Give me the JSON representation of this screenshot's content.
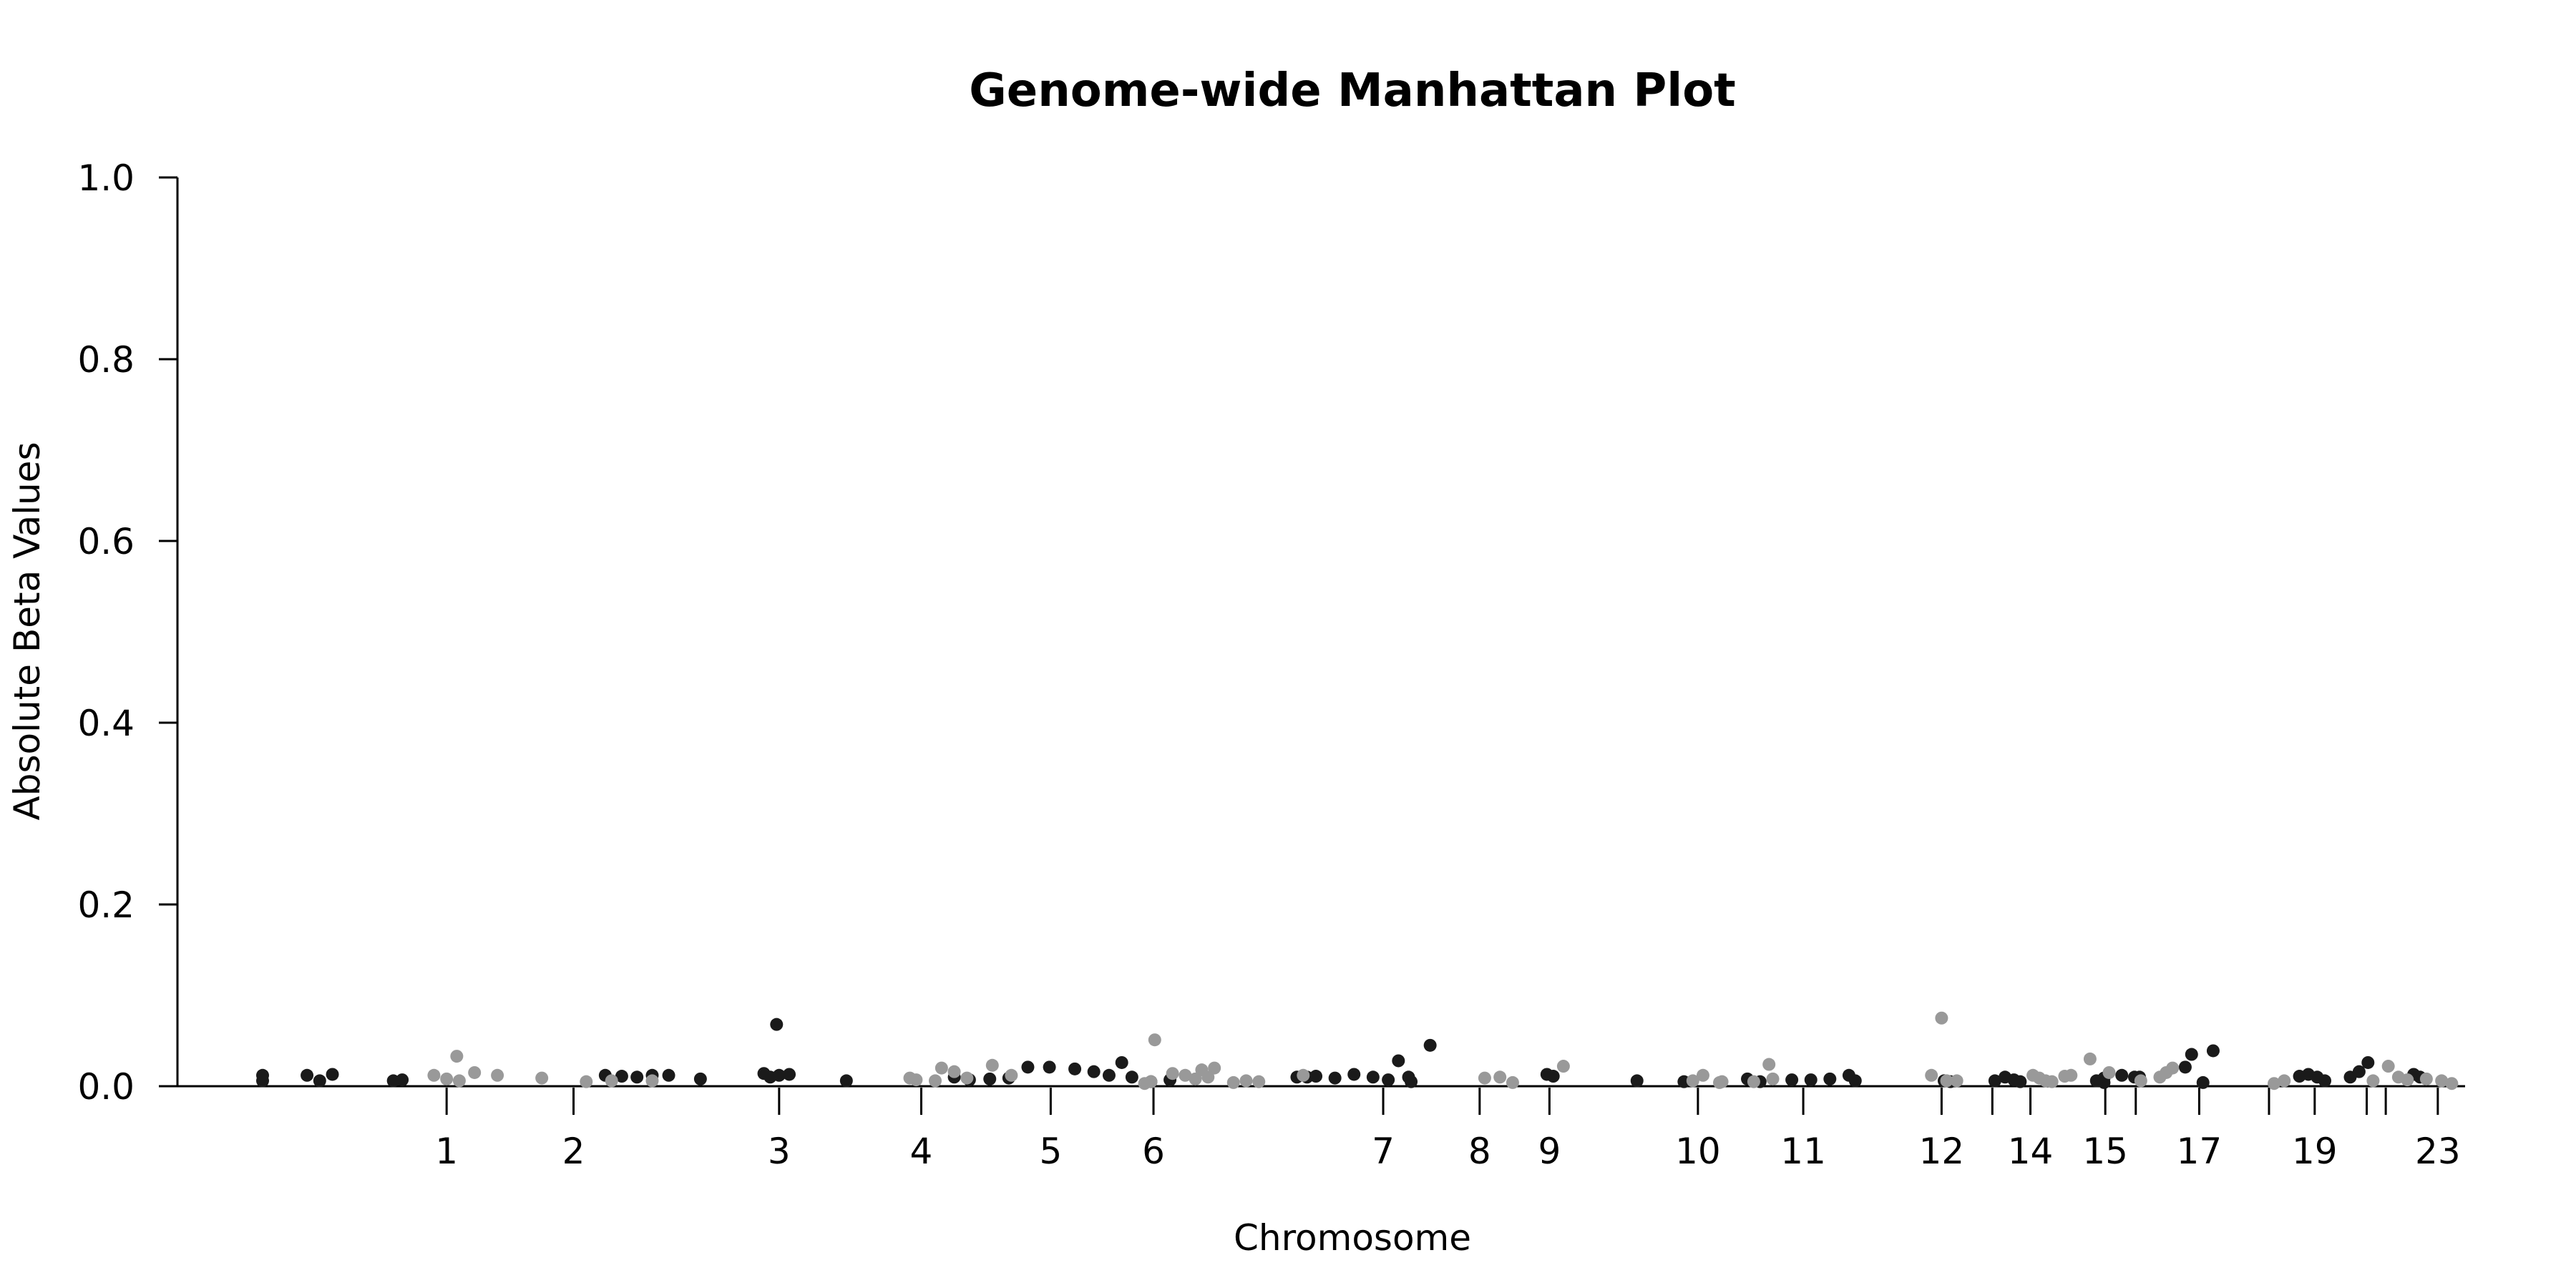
{
  "chart_data": {
    "type": "scatter",
    "title": "Genome-wide Manhattan Plot",
    "xlabel": "Chromosome",
    "ylabel": "Absolute Beta Values",
    "ylim": [
      0,
      1.0
    ],
    "y_ticks": [
      0.0,
      0.2,
      0.4,
      0.6,
      0.8,
      1.0
    ],
    "y_tick_labels": [
      "0.0",
      "0.2",
      "0.4",
      "0.6",
      "0.8",
      "1.0"
    ],
    "grid": false,
    "legend": "none",
    "colors": {
      "odd": "#1a1a1a",
      "even": "#999999"
    },
    "chromosome_ticks": [
      {
        "label": "1",
        "pos": 1.0
      },
      {
        "label": "2",
        "pos": 2.0
      },
      {
        "label": "3",
        "pos": 3.62
      },
      {
        "label": "4",
        "pos": 4.74
      },
      {
        "label": "5",
        "pos": 5.76
      },
      {
        "label": "6",
        "pos": 6.57
      },
      {
        "label": "7",
        "pos": 8.38
      },
      {
        "label": "8",
        "pos": 9.14
      },
      {
        "label": "9",
        "pos": 9.69
      },
      {
        "label": "10",
        "pos": 10.86
      },
      {
        "label": "11",
        "pos": 11.69
      },
      {
        "label": "12",
        "pos": 12.78
      },
      {
        "label": "",
        "pos": 13.18
      },
      {
        "label": "14",
        "pos": 13.48
      },
      {
        "label": "15",
        "pos": 14.07
      },
      {
        "label": "",
        "pos": 14.31
      },
      {
        "label": "17",
        "pos": 14.81
      },
      {
        "label": "",
        "pos": 15.36
      },
      {
        "label": "19",
        "pos": 15.72
      },
      {
        "label": "",
        "pos": 16.13
      },
      {
        "label": "",
        "pos": 16.28
      },
      {
        "label": "23",
        "pos": 16.69
      }
    ],
    "x_range": [
      -0.45,
      16.86
    ],
    "series": [
      {
        "color_key": "odd",
        "points": [
          [
            -0.45,
            0.012
          ],
          [
            -0.45,
            0.006
          ],
          [
            -0.1,
            0.012
          ],
          [
            0.1,
            0.013
          ],
          [
            0.58,
            0.006
          ],
          [
            0.65,
            0.007
          ],
          [
            0.0,
            0.006
          ],
          [
            3.6,
            0.068
          ],
          [
            2.25,
            0.012
          ],
          [
            2.38,
            0.011
          ],
          [
            2.5,
            0.01
          ],
          [
            2.62,
            0.012
          ],
          [
            2.75,
            0.012
          ],
          [
            3.0,
            0.008
          ],
          [
            3.5,
            0.014
          ],
          [
            3.55,
            0.01
          ],
          [
            3.62,
            0.012
          ],
          [
            3.7,
            0.013
          ],
          [
            4.15,
            0.006
          ],
          [
            5.0,
            0.01
          ],
          [
            5.12,
            0.007
          ],
          [
            5.28,
            0.008
          ],
          [
            5.43,
            0.009
          ],
          [
            5.58,
            0.021
          ],
          [
            5.75,
            0.021
          ],
          [
            5.95,
            0.019
          ],
          [
            6.1,
            0.016
          ],
          [
            6.22,
            0.012
          ],
          [
            6.32,
            0.026
          ],
          [
            6.4,
            0.01
          ],
          [
            6.55,
            0.005
          ],
          [
            6.7,
            0.007
          ],
          [
            7.7,
            0.01
          ],
          [
            7.78,
            0.01
          ],
          [
            7.85,
            0.011
          ],
          [
            8.0,
            0.009
          ],
          [
            8.15,
            0.013
          ],
          [
            8.3,
            0.01
          ],
          [
            8.42,
            0.007
          ],
          [
            8.5,
            0.028
          ],
          [
            8.58,
            0.01
          ],
          [
            8.75,
            0.045
          ],
          [
            8.6,
            0.005
          ],
          [
            9.67,
            0.013
          ],
          [
            9.72,
            0.011
          ],
          [
            10.38,
            0.006
          ],
          [
            10.75,
            0.005
          ],
          [
            11.25,
            0.008
          ],
          [
            11.35,
            0.005
          ],
          [
            11.6,
            0.007
          ],
          [
            11.75,
            0.007
          ],
          [
            11.9,
            0.008
          ],
          [
            12.05,
            0.012
          ],
          [
            12.1,
            0.006
          ],
          [
            13.4,
            0.005
          ],
          [
            12.85,
            0.005
          ],
          [
            12.8,
            0.006
          ],
          [
            13.2,
            0.006
          ],
          [
            13.28,
            0.01
          ],
          [
            13.35,
            0.007
          ],
          [
            14.06,
            0.004
          ],
          [
            14.2,
            0.012
          ],
          [
            14.34,
            0.01
          ],
          [
            14.3,
            0.01
          ],
          [
            14.06,
            0.009
          ],
          [
            14.0,
            0.006
          ],
          [
            14.7,
            0.021
          ],
          [
            14.75,
            0.035
          ],
          [
            14.84,
            0.004
          ],
          [
            14.92,
            0.039
          ],
          [
            15.6,
            0.011
          ],
          [
            15.67,
            0.013
          ],
          [
            15.74,
            0.01
          ],
          [
            15.8,
            0.006
          ],
          [
            16.0,
            0.01
          ],
          [
            16.07,
            0.016
          ],
          [
            16.14,
            0.026
          ],
          [
            16.5,
            0.013
          ],
          [
            16.55,
            0.01
          ]
        ]
      },
      {
        "color_key": "even",
        "points": [
          [
            0.9,
            0.012
          ],
          [
            1.0,
            0.008
          ],
          [
            1.08,
            0.033
          ],
          [
            1.1,
            0.006
          ],
          [
            1.22,
            0.015
          ],
          [
            1.4,
            0.012
          ],
          [
            1.75,
            0.009
          ],
          [
            2.1,
            0.005
          ],
          [
            2.3,
            0.006
          ],
          [
            2.62,
            0.006
          ],
          [
            4.65,
            0.009
          ],
          [
            4.85,
            0.006
          ],
          [
            4.9,
            0.02
          ],
          [
            5.0,
            0.016
          ],
          [
            5.1,
            0.009
          ],
          [
            5.3,
            0.023
          ],
          [
            5.45,
            0.012
          ],
          [
            4.7,
            0.007
          ],
          [
            6.58,
            0.051
          ],
          [
            6.55,
            0.005
          ],
          [
            6.5,
            0.003
          ],
          [
            6.72,
            0.014
          ],
          [
            6.82,
            0.012
          ],
          [
            6.9,
            0.008
          ],
          [
            6.95,
            0.018
          ],
          [
            7.05,
            0.02
          ],
          [
            7.0,
            0.01
          ],
          [
            7.2,
            0.004
          ],
          [
            7.3,
            0.006
          ],
          [
            7.4,
            0.005
          ],
          [
            7.75,
            0.012
          ],
          [
            9.18,
            0.009
          ],
          [
            9.3,
            0.01
          ],
          [
            9.4,
            0.004
          ],
          [
            9.8,
            0.022
          ],
          [
            10.9,
            0.012
          ],
          [
            10.82,
            0.006
          ],
          [
            11.03,
            0.004
          ],
          [
            11.05,
            0.005
          ],
          [
            11.3,
            0.005
          ],
          [
            11.42,
            0.024
          ],
          [
            11.45,
            0.008
          ],
          [
            12.7,
            0.012
          ],
          [
            12.78,
            0.075
          ],
          [
            12.82,
            0.006
          ],
          [
            12.9,
            0.006
          ],
          [
            13.5,
            0.012
          ],
          [
            13.55,
            0.009
          ],
          [
            13.6,
            0.006
          ],
          [
            13.65,
            0.005
          ],
          [
            13.75,
            0.011
          ],
          [
            13.8,
            0.012
          ],
          [
            13.95,
            0.03
          ],
          [
            14.1,
            0.015
          ],
          [
            14.35,
            0.006
          ],
          [
            14.5,
            0.01
          ],
          [
            14.55,
            0.015
          ],
          [
            14.6,
            0.02
          ],
          [
            15.4,
            0.003
          ],
          [
            15.48,
            0.006
          ],
          [
            16.18,
            0.006
          ],
          [
            16.3,
            0.022
          ],
          [
            16.38,
            0.01
          ],
          [
            16.45,
            0.007
          ],
          [
            16.6,
            0.008
          ],
          [
            16.72,
            0.006
          ],
          [
            16.8,
            0.003
          ]
        ]
      }
    ]
  }
}
